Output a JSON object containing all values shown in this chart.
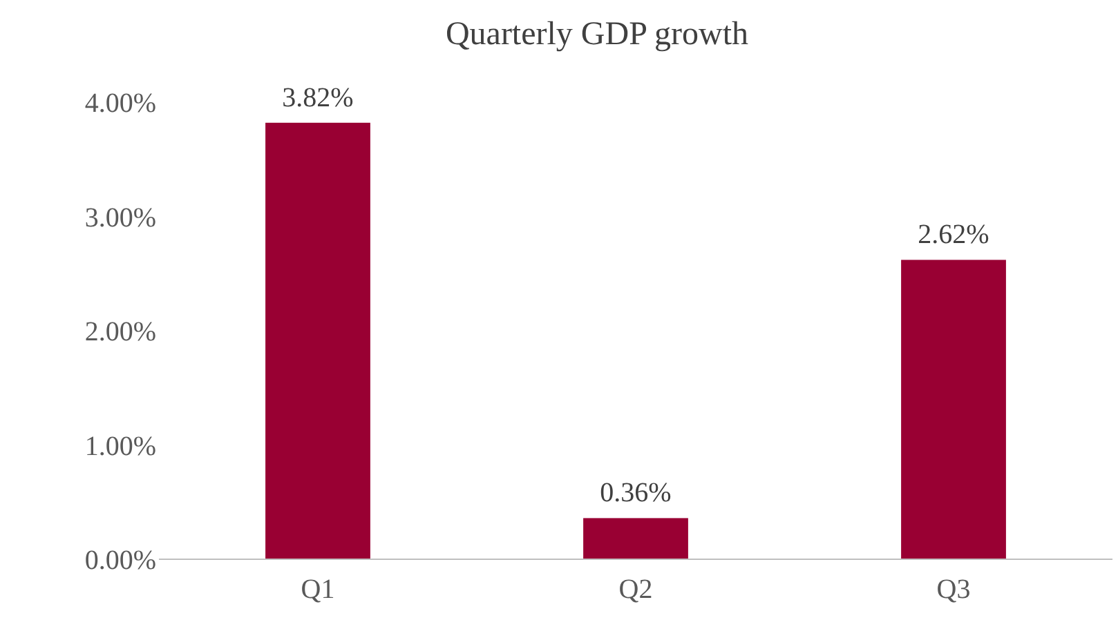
{
  "chart_data": {
    "type": "bar",
    "title": "Quarterly GDP growth",
    "categories": [
      "Q1",
      "Q2",
      "Q3"
    ],
    "values": [
      3.82,
      0.36,
      2.62
    ],
    "color": "#990033",
    "value_labels": [
      "3.82%",
      "0.36%",
      "2.62%"
    ],
    "ylim": [
      0,
      4
    ],
    "yticks": [
      {
        "value": 0,
        "label": "0.00%"
      },
      {
        "value": 1,
        "label": "1.00%"
      },
      {
        "value": 2,
        "label": "2.00%"
      },
      {
        "value": 3,
        "label": "3.00%"
      },
      {
        "value": 4,
        "label": "4.00%"
      }
    ],
    "grid": false
  }
}
